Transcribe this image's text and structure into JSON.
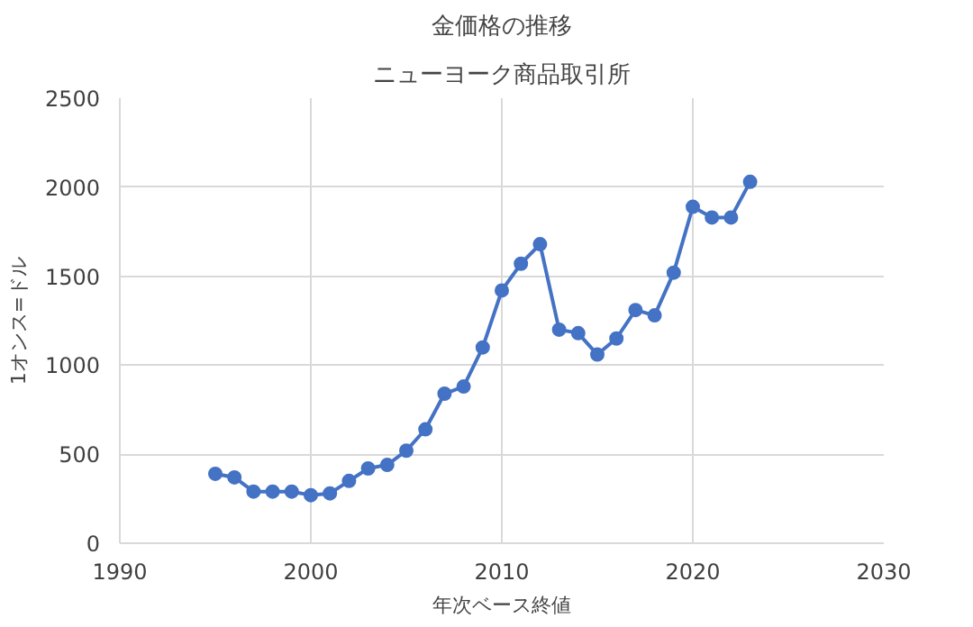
{
  "chart_data": {
    "type": "line",
    "title": "金価格の推移",
    "subtitle": "ニューヨーク商品取引所",
    "xlabel": "年次ベース終値",
    "ylabel": "1オンス=ドル",
    "x": [
      1995,
      1996,
      1997,
      1998,
      1999,
      2000,
      2001,
      2002,
      2003,
      2004,
      2005,
      2006,
      2007,
      2008,
      2009,
      2010,
      2011,
      2012,
      2013,
      2014,
      2015,
      2016,
      2017,
      2018,
      2019,
      2020,
      2021,
      2022,
      2023
    ],
    "series": [
      {
        "color": "#4472c4",
        "values": [
          390,
          370,
          290,
          290,
          290,
          270,
          280,
          350,
          420,
          440,
          520,
          640,
          840,
          880,
          1100,
          1420,
          1570,
          1680,
          1200,
          1180,
          1060,
          1150,
          1310,
          1280,
          1520,
          1890,
          1830,
          1830,
          2030
        ]
      }
    ],
    "xlim": [
      1990,
      2030
    ],
    "xticks": [
      1990,
      2000,
      2010,
      2020,
      2030
    ],
    "ylim": [
      0,
      2500
    ],
    "yticks": [
      0,
      500,
      1000,
      1500,
      2000,
      2500
    ],
    "grid": true,
    "marker": "circle",
    "line_style": "solid"
  }
}
